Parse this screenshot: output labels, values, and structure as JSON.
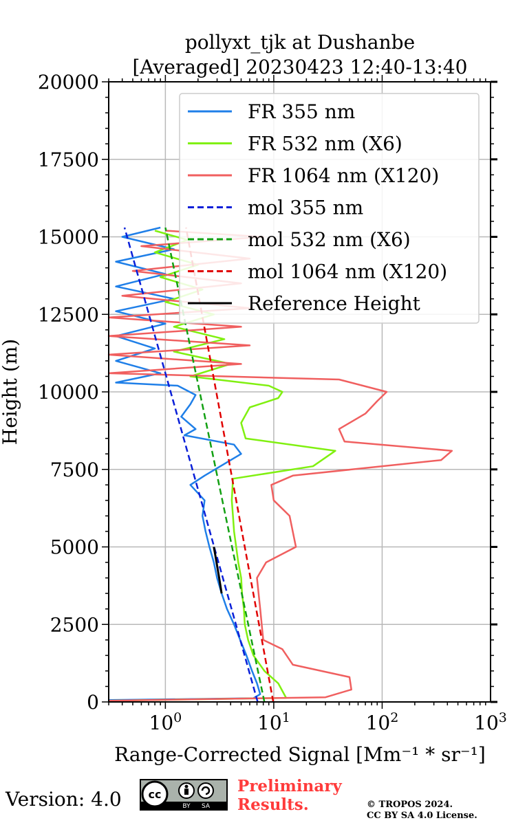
{
  "chart_data": {
    "type": "line",
    "title_line1": "pollyxt_tjk at Dushanbe",
    "title_line2": "[Averaged] 20230423 12:40-13:40",
    "xlabel": "Range-Corrected Signal [Mm⁻¹ * sr⁻¹]",
    "ylabel": "Height (m)",
    "xscale": "log",
    "xlim": [
      0.3,
      1000
    ],
    "ylim": [
      0,
      20000
    ],
    "x_ticks": [
      1,
      10,
      100,
      1000
    ],
    "x_tick_labels": [
      {
        "base": "10",
        "exp": "0"
      },
      {
        "base": "10",
        "exp": "1"
      },
      {
        "base": "10",
        "exp": "2"
      },
      {
        "base": "10",
        "exp": "3"
      }
    ],
    "y_ticks": [
      0,
      2500,
      5000,
      7500,
      10000,
      12500,
      15000,
      17500,
      20000
    ],
    "y_tick_labels": [
      "0",
      "2500",
      "5000",
      "7500",
      "10000",
      "12500",
      "15000",
      "17500",
      "20000"
    ],
    "grid": true,
    "legend_position": "top-right",
    "series": [
      {
        "name": "FR 355 nm",
        "color": "#1f7fe8",
        "style": "solid",
        "points": [
          [
            0.3,
            60
          ],
          [
            6.5,
            120
          ],
          [
            7.5,
            250
          ],
          [
            7.0,
            600
          ],
          [
            6.3,
            1000
          ],
          [
            5.6,
            1500
          ],
          [
            4.9,
            2000
          ],
          [
            4.3,
            2500
          ],
          [
            3.7,
            3000
          ],
          [
            3.3,
            3500
          ],
          [
            3.0,
            4000
          ],
          [
            2.8,
            4500
          ],
          [
            2.55,
            5000
          ],
          [
            2.35,
            5500
          ],
          [
            2.2,
            6000
          ],
          [
            2.3,
            6500
          ],
          [
            1.7,
            7000
          ],
          [
            2.3,
            7300
          ],
          [
            5.0,
            8000
          ],
          [
            4.3,
            8300
          ],
          [
            1.5,
            8600
          ],
          [
            1.9,
            8800
          ],
          [
            1.4,
            9200
          ],
          [
            1.7,
            9600
          ],
          [
            1.9,
            9900
          ],
          [
            1.3,
            10200
          ],
          [
            0.35,
            10300
          ],
          [
            0.9,
            10600
          ],
          [
            0.35,
            11000
          ],
          [
            0.8,
            11400
          ],
          [
            0.35,
            11800
          ],
          [
            1.0,
            12200
          ],
          [
            0.35,
            12600
          ],
          [
            1.2,
            13000
          ],
          [
            0.35,
            13400
          ],
          [
            1.0,
            13800
          ],
          [
            0.35,
            14200
          ],
          [
            1.2,
            14600
          ],
          [
            0.4,
            15000
          ],
          [
            0.9,
            15300
          ]
        ]
      },
      {
        "name": "FR 532 nm (X6)",
        "color": "#80f010",
        "style": "solid",
        "points": [
          [
            0.3,
            40
          ],
          [
            13.0,
            130
          ],
          [
            11.0,
            600
          ],
          [
            8.2,
            1000
          ],
          [
            6.5,
            1500
          ],
          [
            5.8,
            2000
          ],
          [
            5.4,
            2500
          ],
          [
            5.3,
            3000
          ],
          [
            5.1,
            3500
          ],
          [
            5.0,
            4000
          ],
          [
            4.7,
            4500
          ],
          [
            4.5,
            5000
          ],
          [
            4.3,
            5500
          ],
          [
            4.2,
            6000
          ],
          [
            4.1,
            6500
          ],
          [
            4.2,
            7200
          ],
          [
            23.0,
            7600
          ],
          [
            37.0,
            8100
          ],
          [
            5.5,
            8500
          ],
          [
            5.0,
            9000
          ],
          [
            6.0,
            9500
          ],
          [
            11.0,
            9800
          ],
          [
            12.0,
            10000
          ],
          [
            9.0,
            10200
          ],
          [
            1.7,
            10500
          ],
          [
            4.0,
            10900
          ],
          [
            1.2,
            11300
          ],
          [
            3.5,
            11700
          ],
          [
            1.2,
            12100
          ],
          [
            2.8,
            12500
          ],
          [
            1.0,
            12900
          ],
          [
            2.2,
            13300
          ],
          [
            0.9,
            13700
          ],
          [
            2.0,
            14100
          ],
          [
            0.8,
            14500
          ],
          [
            1.6,
            14900
          ],
          [
            0.8,
            15200
          ]
        ]
      },
      {
        "name": "FR 1064 nm (X120)",
        "color": "#f05f5f",
        "style": "solid",
        "points": [
          [
            0.3,
            40
          ],
          [
            30.0,
            150
          ],
          [
            52.0,
            400
          ],
          [
            50.0,
            800
          ],
          [
            15.0,
            1200
          ],
          [
            12.0,
            1700
          ],
          [
            8.0,
            2000
          ],
          [
            7.5,
            3000
          ],
          [
            7.0,
            4000
          ],
          [
            8.5,
            4500
          ],
          [
            16.0,
            5000
          ],
          [
            14.0,
            6000
          ],
          [
            10.0,
            6500
          ],
          [
            9.5,
            7000
          ],
          [
            15.0,
            7300
          ],
          [
            350.0,
            7800
          ],
          [
            440.0,
            8100
          ],
          [
            45.0,
            8400
          ],
          [
            40.0,
            8800
          ],
          [
            70.0,
            9300
          ],
          [
            90.0,
            9700
          ],
          [
            110.0,
            10000
          ],
          [
            40.0,
            10400
          ],
          [
            0.3,
            10600
          ],
          [
            5.0,
            10900
          ],
          [
            0.3,
            11200
          ],
          [
            6.0,
            11500
          ],
          [
            0.3,
            11800
          ],
          [
            5.0,
            12100
          ],
          [
            0.3,
            12400
          ],
          [
            6.0,
            12700
          ],
          [
            0.4,
            13100
          ],
          [
            5.0,
            13500
          ],
          [
            0.5,
            13900
          ],
          [
            6.0,
            14300
          ],
          [
            0.6,
            14700
          ],
          [
            8.0,
            15000
          ],
          [
            1.0,
            15200
          ]
        ]
      },
      {
        "name": "mol 355 nm",
        "color": "#0a1fd8",
        "style": "dashed",
        "points": [
          [
            7.1,
            0
          ],
          [
            0.42,
            15300
          ]
        ]
      },
      {
        "name": "mol 532 nm (X6)",
        "color": "#12a012",
        "style": "dashed",
        "points": [
          [
            8.2,
            0
          ],
          [
            1.0,
            15300
          ]
        ]
      },
      {
        "name": "mol 1064 nm (X120)",
        "color": "#e00000",
        "style": "dashed",
        "points": [
          [
            9.9,
            0
          ],
          [
            1.55,
            15300
          ]
        ]
      },
      {
        "name": "Reference Height",
        "color": "#000000",
        "style": "solid",
        "points": [
          [
            3.3,
            3500
          ],
          [
            3.2,
            3800
          ],
          [
            3.1,
            4100
          ],
          [
            3.0,
            4400
          ],
          [
            2.9,
            4700
          ],
          [
            2.8,
            5000
          ]
        ]
      }
    ]
  },
  "footer": {
    "version": "Version: 4.0",
    "preliminary_line1": "Preliminary",
    "preliminary_line2": "Results.",
    "copyright_line1": "© TROPOS 2024.",
    "copyright_line2": "CC BY SA 4.0 License.",
    "badge_cc": "cc",
    "badge_by": "BY",
    "badge_sa": "SA"
  }
}
